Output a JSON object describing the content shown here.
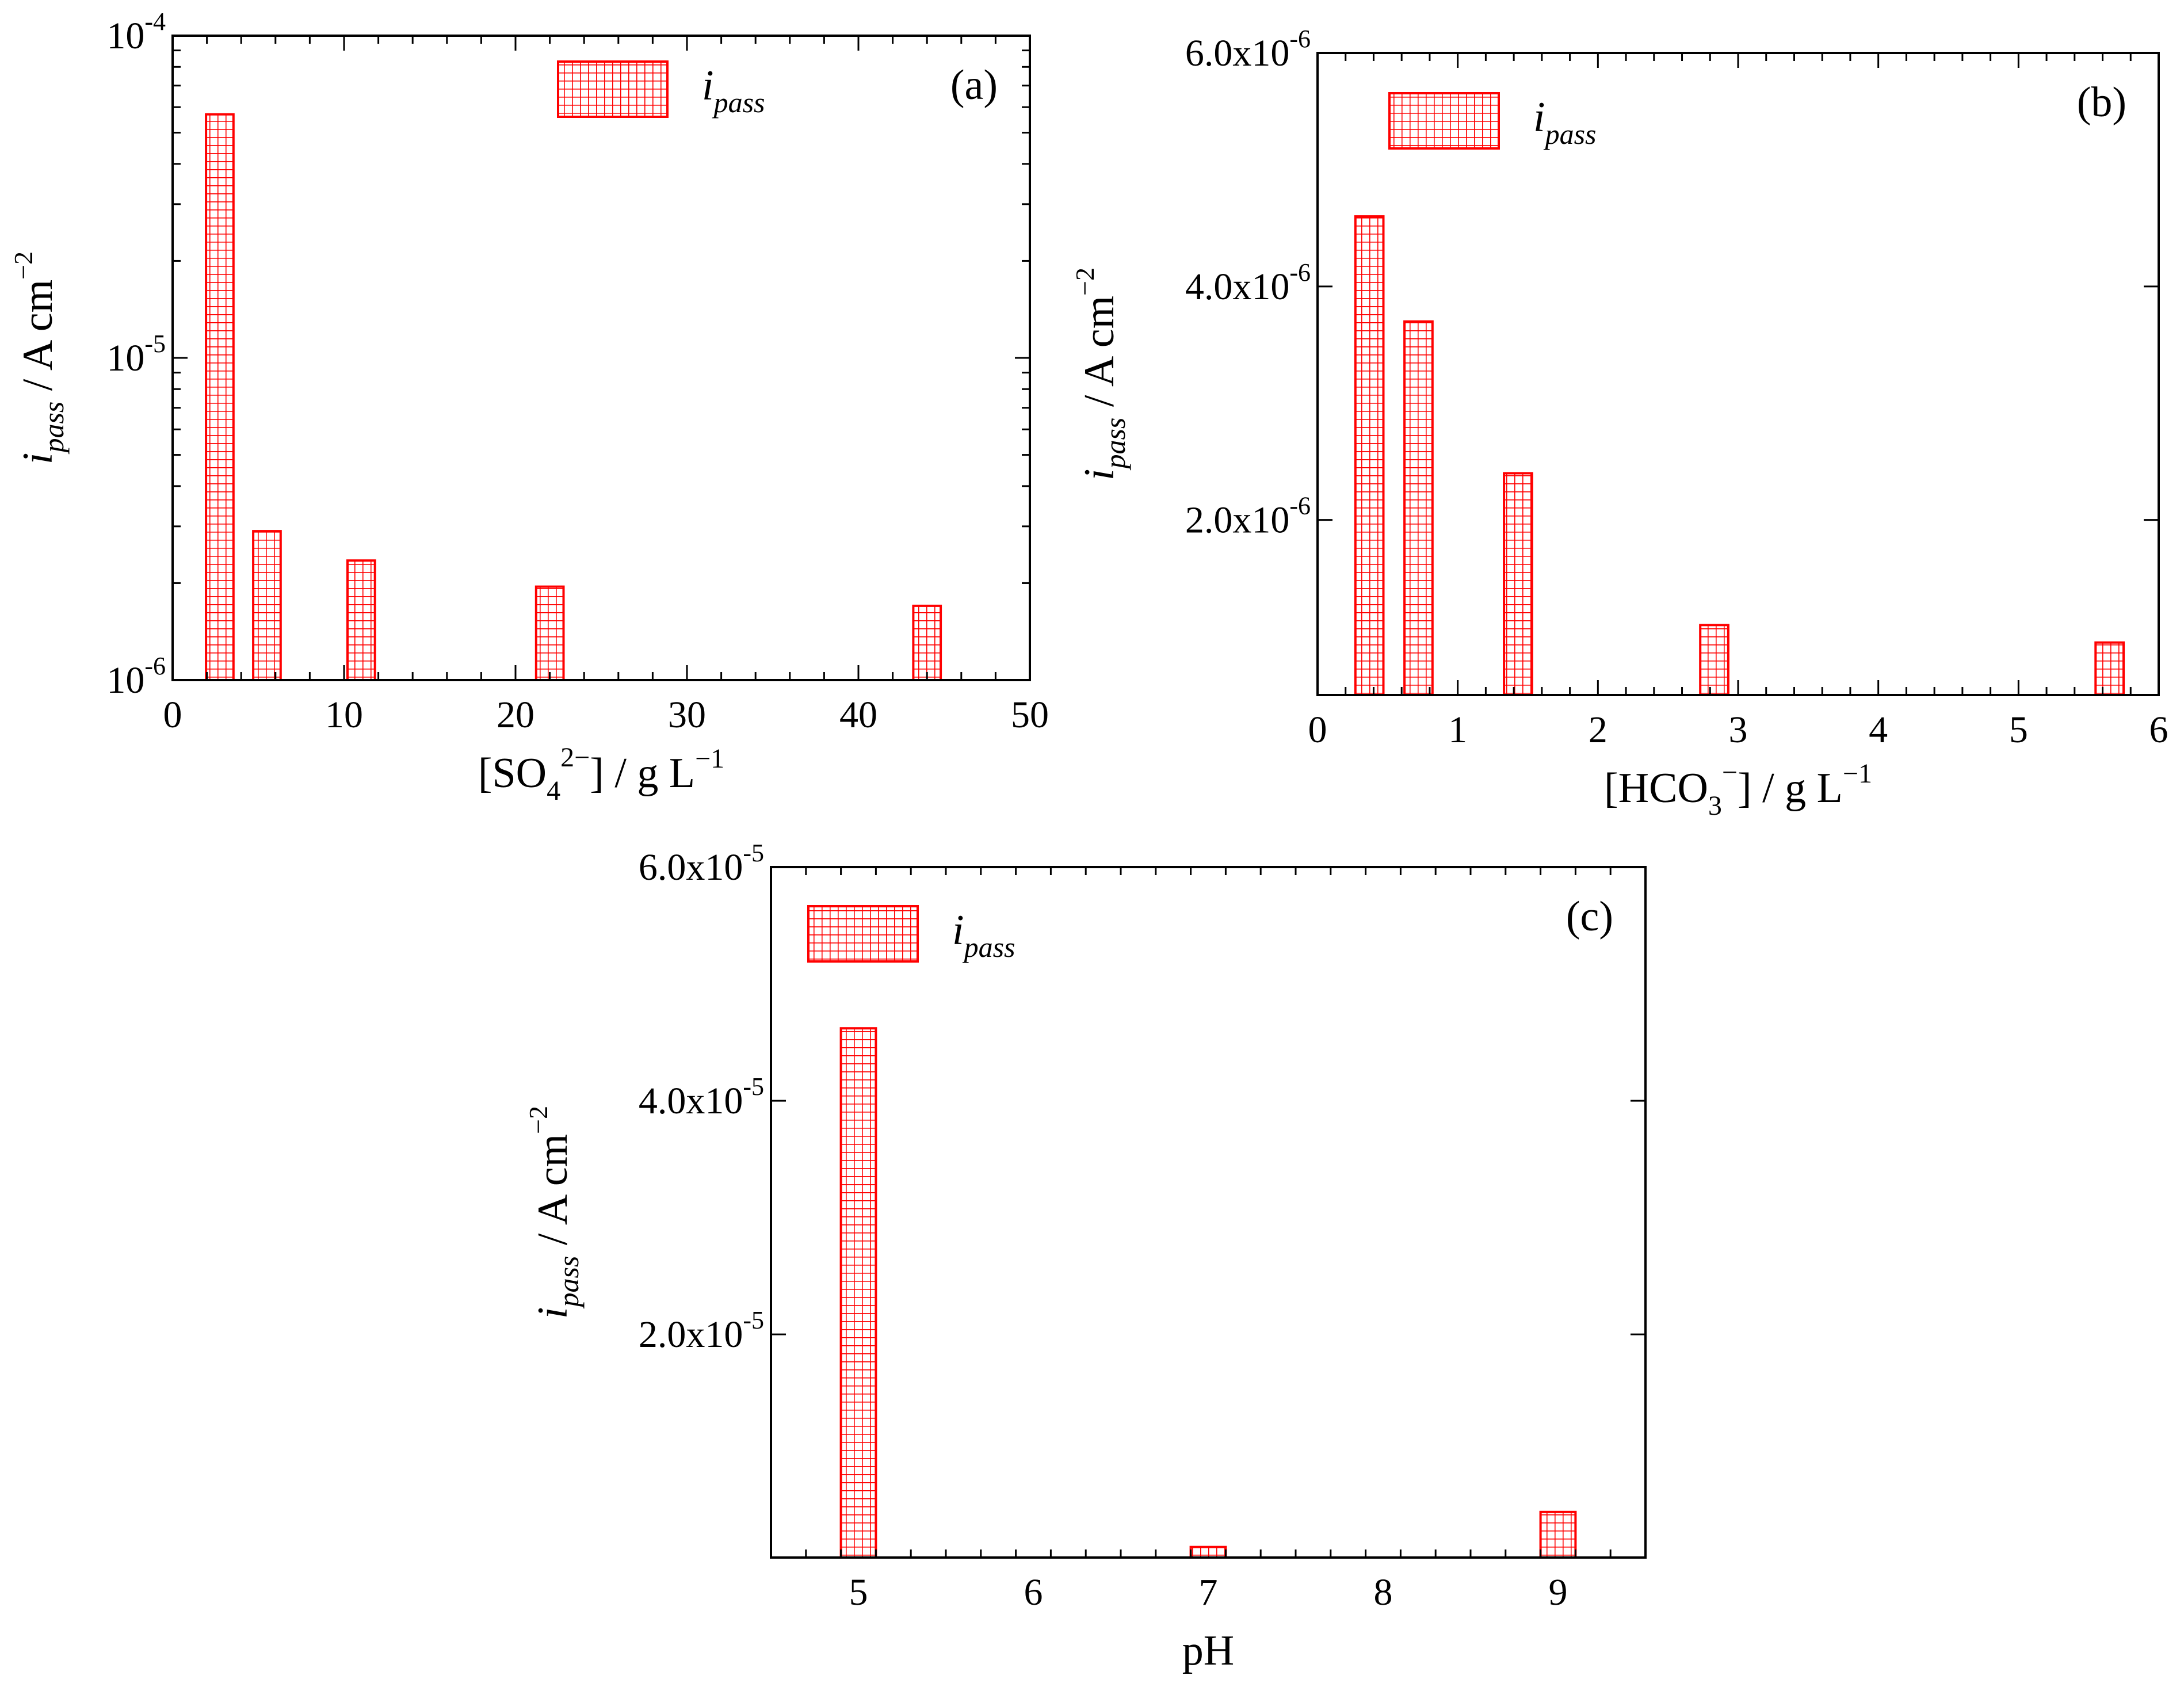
{
  "figure": {
    "colors": {
      "bar": "#ff0000",
      "axis": "#000000",
      "background": "#ffffff"
    }
  },
  "chart_data": [
    {
      "id": "a",
      "type": "bar",
      "panel_label": "(a)",
      "legend": {
        "label_main": "i",
        "label_sub": "pass",
        "placement": "top-center"
      },
      "ylabel": {
        "main": "i",
        "sub": "pass",
        "rest": " / A cm",
        "sup": "−2"
      },
      "xlabel": {
        "prefix": "[SO",
        "sub": "4",
        "sup": "2−",
        "suffix": "] / g L",
        "unit_sup": "−1"
      },
      "xlim": [
        0,
        50
      ],
      "yscale": "log",
      "ylim": [
        1e-06,
        0.0001
      ],
      "x_ticks": [
        0,
        10,
        20,
        30,
        40,
        50
      ],
      "x_tick_labels": [
        "0",
        "10",
        "20",
        "30",
        "40",
        "50"
      ],
      "y_tick_labels": [
        {
          "value": 0.0001,
          "base": "10",
          "exp": "-4"
        },
        {
          "value": 1e-05,
          "base": "10",
          "exp": "-5"
        },
        {
          "value": 1e-06,
          "base": "10",
          "exp": "-6"
        }
      ],
      "bar_width": 1.6,
      "x": [
        2.75,
        5.5,
        11,
        22,
        44
      ],
      "values": [
        5.7e-05,
        2.9e-06,
        2.35e-06,
        1.95e-06,
        1.7e-06
      ]
    },
    {
      "id": "b",
      "type": "bar",
      "panel_label": "(b)",
      "legend": {
        "label_main": "i",
        "label_sub": "pass",
        "placement": "top-left"
      },
      "ylabel": {
        "main": "i",
        "sub": "pass",
        "rest": " / A cm",
        "sup": "−2"
      },
      "xlabel": {
        "prefix": "[HCO",
        "sub": "3",
        "sup": "−",
        "suffix": "] / g L",
        "unit_sup": "−1"
      },
      "xlim": [
        0,
        6
      ],
      "yscale": "linear",
      "ylim": [
        5e-07,
        6e-06
      ],
      "x_ticks": [
        0,
        1,
        2,
        3,
        4,
        5,
        6
      ],
      "x_tick_labels": [
        "0",
        "1",
        "2",
        "3",
        "4",
        "5",
        "6"
      ],
      "y_tick_labels": [
        {
          "value": 2e-06,
          "base": "2.0x10",
          "exp": "-6"
        },
        {
          "value": 4e-06,
          "base": "4.0x10",
          "exp": "-6"
        },
        {
          "value": 6e-06,
          "base": "6.0x10",
          "exp": "-6"
        }
      ],
      "bar_width": 0.2,
      "x": [
        0.37,
        0.72,
        1.43,
        2.83,
        5.65
      ],
      "values": [
        4.6e-06,
        3.7e-06,
        2.4e-06,
        1.1e-06,
        9.5e-07
      ]
    },
    {
      "id": "c",
      "type": "bar",
      "panel_label": "(c)",
      "legend": {
        "label_main": "i",
        "label_sub": "pass",
        "placement": "top-left"
      },
      "ylabel": {
        "main": "i",
        "sub": "pass",
        "rest": " / A cm",
        "sup": "−2"
      },
      "xlabel": {
        "text": "pH"
      },
      "xlim": [
        4.5,
        9.5
      ],
      "yscale": "linear",
      "ylim": [
        9e-07,
        6e-05
      ],
      "x_ticks": [
        5,
        6,
        7,
        8,
        9
      ],
      "x_tick_labels": [
        "5",
        "6",
        "7",
        "8",
        "9"
      ],
      "y_tick_labels": [
        {
          "value": 2e-05,
          "base": "2.0x10",
          "exp": "-5"
        },
        {
          "value": 4e-05,
          "base": "4.0x10",
          "exp": "-5"
        },
        {
          "value": 6e-05,
          "base": "6.0x10",
          "exp": "-5"
        }
      ],
      "bar_width": 0.2,
      "x": [
        5,
        7,
        9
      ],
      "values": [
        4.62e-05,
        1.8e-06,
        4.8e-06
      ]
    }
  ]
}
